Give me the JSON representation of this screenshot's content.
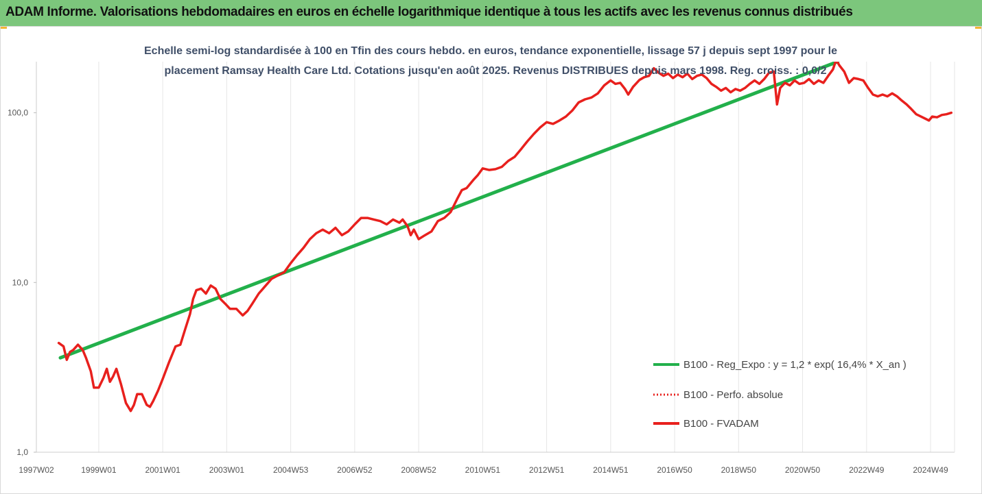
{
  "header": {
    "title": "ADAM Informe. Valorisations hebdomadaires en euros en échelle logarithmique identique à tous les actifs avec les revenus connus distribués",
    "banner_color": "#7cc67c"
  },
  "chart_data": {
    "type": "line",
    "title_lines": [
      "Echelle semi-log standardisée à 100 en Tfin des cours hebdo. en euros, tendance exponentielle, lissage 57 j depuis sept 1997 pour le",
      "placement Ramsay Health Care Ltd. Cotations jusqu'en août 2025. Revenus DISTRIBUES depuis mars 1998. Reg. croiss. : 0,0/2"
    ],
    "y_scale": "log",
    "ylim": [
      1,
      200
    ],
    "y_ticks": [
      {
        "value": 1,
        "label": "1,0"
      },
      {
        "value": 10,
        "label": "10,0"
      },
      {
        "value": 100,
        "label": "100,0"
      }
    ],
    "x_range": [
      1997.05,
      2025.75
    ],
    "x_ticks": [
      {
        "value": 1997.05,
        "label": "1997W02"
      },
      {
        "value": 1999.0,
        "label": "1999W01"
      },
      {
        "value": 2001.0,
        "label": "2001W01"
      },
      {
        "value": 2003.0,
        "label": "2003W01"
      },
      {
        "value": 2005.0,
        "label": "2004W53"
      },
      {
        "value": 2007.0,
        "label": "2006W52"
      },
      {
        "value": 2009.0,
        "label": "2008W52"
      },
      {
        "value": 2011.0,
        "label": "2010W51"
      },
      {
        "value": 2013.0,
        "label": "2012W51"
      },
      {
        "value": 2015.0,
        "label": "2014W51"
      },
      {
        "value": 2017.0,
        "label": "2016W50"
      },
      {
        "value": 2019.0,
        "label": "2018W50"
      },
      {
        "value": 2021.0,
        "label": "2020W50"
      },
      {
        "value": 2023.0,
        "label": "2022W49"
      },
      {
        "value": 2025.0,
        "label": "2024W49"
      }
    ],
    "grid": "vertical",
    "legend_position": "right",
    "series": [
      {
        "name": "B100 - Reg_Expo : y = 1,2 * exp( 16,4% *  X_an )",
        "color": "#22b04b",
        "style": "solid",
        "points": [
          [
            1997.8,
            3.6
          ],
          [
            2022.1,
            200
          ]
        ]
      },
      {
        "name": "B100 - Perfo. absolue",
        "color": "#e8201d",
        "style": "dotted",
        "points": []
      },
      {
        "name": "B100 - FVADAM",
        "color": "#e8201d",
        "style": "solid",
        "points": [
          [
            1997.75,
            4.4
          ],
          [
            1997.9,
            4.2
          ],
          [
            1998.0,
            3.5
          ],
          [
            1998.1,
            3.9
          ],
          [
            1998.2,
            4.0
          ],
          [
            1998.35,
            4.3
          ],
          [
            1998.5,
            4.0
          ],
          [
            1998.6,
            3.6
          ],
          [
            1998.75,
            3.0
          ],
          [
            1998.85,
            2.4
          ],
          [
            1999.0,
            2.4
          ],
          [
            1999.15,
            2.75
          ],
          [
            1999.25,
            3.1
          ],
          [
            1999.35,
            2.6
          ],
          [
            1999.45,
            2.8
          ],
          [
            1999.55,
            3.1
          ],
          [
            1999.7,
            2.5
          ],
          [
            1999.85,
            1.95
          ],
          [
            2000.0,
            1.75
          ],
          [
            2000.1,
            1.9
          ],
          [
            2000.2,
            2.2
          ],
          [
            2000.35,
            2.2
          ],
          [
            2000.5,
            1.9
          ],
          [
            2000.6,
            1.85
          ],
          [
            2000.7,
            2.0
          ],
          [
            2000.85,
            2.3
          ],
          [
            2001.0,
            2.7
          ],
          [
            2001.2,
            3.4
          ],
          [
            2001.4,
            4.2
          ],
          [
            2001.55,
            4.3
          ],
          [
            2001.7,
            5.3
          ],
          [
            2001.85,
            6.5
          ],
          [
            2001.95,
            8.0
          ],
          [
            2002.05,
            9.0
          ],
          [
            2002.2,
            9.2
          ],
          [
            2002.35,
            8.6
          ],
          [
            2002.5,
            9.6
          ],
          [
            2002.65,
            9.2
          ],
          [
            2002.8,
            8.0
          ],
          [
            2002.95,
            7.5
          ],
          [
            2003.1,
            7.0
          ],
          [
            2003.3,
            7.0
          ],
          [
            2003.5,
            6.4
          ],
          [
            2003.65,
            6.8
          ],
          [
            2003.8,
            7.5
          ],
          [
            2004.0,
            8.6
          ],
          [
            2004.2,
            9.5
          ],
          [
            2004.4,
            10.5
          ],
          [
            2004.6,
            11.0
          ],
          [
            2004.8,
            11.5
          ],
          [
            2005.0,
            13.0
          ],
          [
            2005.2,
            14.5
          ],
          [
            2005.4,
            16.0
          ],
          [
            2005.6,
            18.0
          ],
          [
            2005.8,
            19.5
          ],
          [
            2006.0,
            20.5
          ],
          [
            2006.2,
            19.5
          ],
          [
            2006.4,
            21.0
          ],
          [
            2006.6,
            19.0
          ],
          [
            2006.8,
            20.0
          ],
          [
            2007.0,
            22.0
          ],
          [
            2007.2,
            24.0
          ],
          [
            2007.4,
            24.0
          ],
          [
            2007.6,
            23.5
          ],
          [
            2007.8,
            23.0
          ],
          [
            2008.0,
            22.0
          ],
          [
            2008.2,
            23.5
          ],
          [
            2008.4,
            22.5
          ],
          [
            2008.5,
            23.5
          ],
          [
            2008.65,
            21.5
          ],
          [
            2008.75,
            19.0
          ],
          [
            2008.85,
            20.5
          ],
          [
            2009.0,
            18.0
          ],
          [
            2009.2,
            19.0
          ],
          [
            2009.4,
            20.0
          ],
          [
            2009.6,
            23.0
          ],
          [
            2009.8,
            24.0
          ],
          [
            2010.0,
            26.0
          ],
          [
            2010.2,
            31.0
          ],
          [
            2010.35,
            35.0
          ],
          [
            2010.5,
            36.0
          ],
          [
            2010.7,
            40.0
          ],
          [
            2010.85,
            43.0
          ],
          [
            2011.0,
            47.0
          ],
          [
            2011.2,
            46.0
          ],
          [
            2011.4,
            46.5
          ],
          [
            2011.6,
            48.0
          ],
          [
            2011.8,
            52.0
          ],
          [
            2012.0,
            55.0
          ],
          [
            2012.2,
            61.0
          ],
          [
            2012.4,
            68.0
          ],
          [
            2012.6,
            75.0
          ],
          [
            2012.8,
            82.0
          ],
          [
            2013.0,
            88.0
          ],
          [
            2013.2,
            86.0
          ],
          [
            2013.4,
            90.0
          ],
          [
            2013.6,
            95.0
          ],
          [
            2013.8,
            103.0
          ],
          [
            2014.0,
            115.0
          ],
          [
            2014.2,
            120.0
          ],
          [
            2014.4,
            123.0
          ],
          [
            2014.6,
            130.0
          ],
          [
            2014.8,
            145.0
          ],
          [
            2015.0,
            155.0
          ],
          [
            2015.15,
            148.0
          ],
          [
            2015.3,
            150.0
          ],
          [
            2015.45,
            138.0
          ],
          [
            2015.55,
            128.0
          ],
          [
            2015.7,
            142.0
          ],
          [
            2015.9,
            156.0
          ],
          [
            2016.05,
            162.0
          ],
          [
            2016.2,
            165.0
          ],
          [
            2016.35,
            183.0
          ],
          [
            2016.5,
            172.0
          ],
          [
            2016.65,
            165.0
          ],
          [
            2016.8,
            170.0
          ],
          [
            2016.95,
            160.0
          ],
          [
            2017.1,
            168.0
          ],
          [
            2017.25,
            162.0
          ],
          [
            2017.4,
            170.0
          ],
          [
            2017.55,
            158.0
          ],
          [
            2017.7,
            165.0
          ],
          [
            2017.85,
            168.0
          ],
          [
            2018.0,
            160.0
          ],
          [
            2018.15,
            148.0
          ],
          [
            2018.3,
            142.0
          ],
          [
            2018.45,
            135.0
          ],
          [
            2018.6,
            140.0
          ],
          [
            2018.75,
            132.0
          ],
          [
            2018.9,
            138.0
          ],
          [
            2019.05,
            135.0
          ],
          [
            2019.2,
            140.0
          ],
          [
            2019.35,
            148.0
          ],
          [
            2019.5,
            155.0
          ],
          [
            2019.65,
            148.0
          ],
          [
            2019.8,
            158.0
          ],
          [
            2019.95,
            172.0
          ],
          [
            2020.1,
            175.0
          ],
          [
            2020.2,
            112.0
          ],
          [
            2020.3,
            140.0
          ],
          [
            2020.45,
            150.0
          ],
          [
            2020.6,
            145.0
          ],
          [
            2020.75,
            155.0
          ],
          [
            2020.9,
            148.0
          ],
          [
            2021.05,
            150.0
          ],
          [
            2021.2,
            158.0
          ],
          [
            2021.35,
            148.0
          ],
          [
            2021.5,
            155.0
          ],
          [
            2021.65,
            150.0
          ],
          [
            2021.8,
            165.0
          ],
          [
            2021.95,
            180.0
          ],
          [
            2022.05,
            205.0
          ],
          [
            2022.15,
            190.0
          ],
          [
            2022.3,
            175.0
          ],
          [
            2022.45,
            150.0
          ],
          [
            2022.6,
            160.0
          ],
          [
            2022.75,
            158.0
          ],
          [
            2022.9,
            155.0
          ],
          [
            2023.05,
            140.0
          ],
          [
            2023.2,
            128.0
          ],
          [
            2023.35,
            125.0
          ],
          [
            2023.5,
            128.0
          ],
          [
            2023.65,
            125.0
          ],
          [
            2023.8,
            130.0
          ],
          [
            2023.95,
            125.0
          ],
          [
            2024.1,
            118.0
          ],
          [
            2024.25,
            112.0
          ],
          [
            2024.4,
            105.0
          ],
          [
            2024.55,
            98.0
          ],
          [
            2024.7,
            95.0
          ],
          [
            2024.85,
            92.0
          ],
          [
            2024.95,
            90.0
          ],
          [
            2025.05,
            95.0
          ],
          [
            2025.2,
            94.0
          ],
          [
            2025.35,
            97.0
          ],
          [
            2025.5,
            98.0
          ],
          [
            2025.65,
            100.0
          ]
        ]
      }
    ]
  }
}
